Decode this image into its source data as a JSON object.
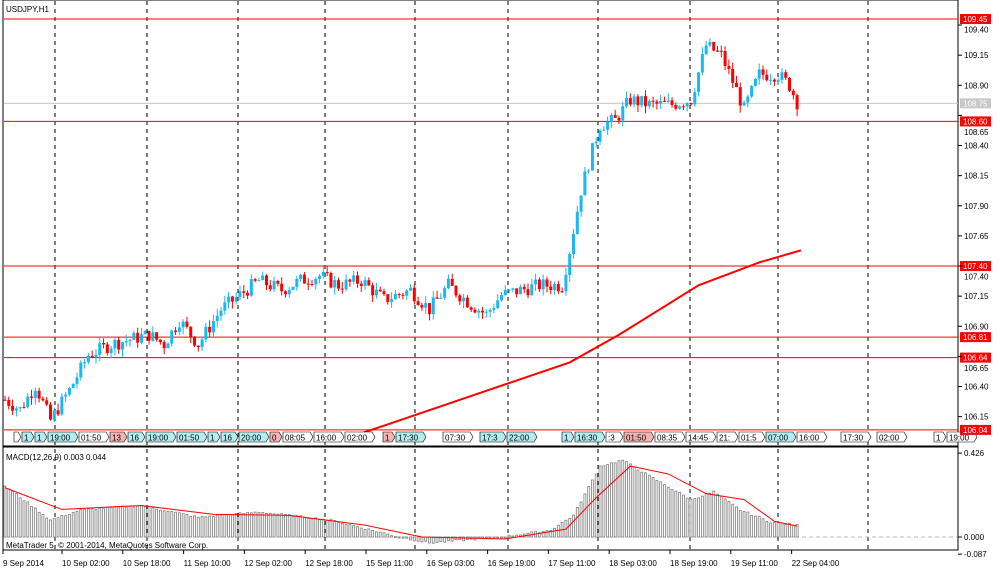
{
  "window": {
    "symbol_title": "USDJPY,H1"
  },
  "indicator": {
    "label": "MACD(12,26,9) 0.003 0.044"
  },
  "copyright": "MetaTrader 5, © 2001-2014, MetaQuotes Software Corp.",
  "colors": {
    "bull": "#1ab8f0",
    "bear": "#ff0000",
    "level_line": "#ff0000",
    "ma_line": "#ff0000",
    "bid_line": "#c8c8c8",
    "macd_hist": "#808080",
    "macd_signal": "#ff0000"
  },
  "price_axis": {
    "ticks": [
      "109.40",
      "109.15",
      "108.90",
      "108.65",
      "108.40",
      "108.15",
      "107.90",
      "107.65",
      "107.40",
      "107.15",
      "106.90",
      "106.65",
      "106.40",
      "106.15"
    ],
    "levels": [
      "109.45",
      "108.60",
      "107.40",
      "106.81",
      "106.64",
      "106.04"
    ],
    "bid": "108.75"
  },
  "macd_axis": {
    "ticks": [
      "0.426",
      "0.000",
      "-0.087"
    ]
  },
  "time_axis": {
    "labels": [
      "9 Sep 2014",
      "10 Sep 02:00",
      "10 Sep 18:00",
      "11 Sep 10:00",
      "12 Sep 02:00",
      "12 Sep 18:00",
      "15 Sep 11:00",
      "16 Sep 03:00",
      "16 Sep 19:00",
      "17 Sep 11:00",
      "18 Sep 03:00",
      "18 Sep 19:00",
      "19 Sep 11:00",
      "22 Sep 04:00"
    ]
  },
  "event_tags": [
    {
      "text": "",
      "kind": "plain"
    },
    {
      "text": "1",
      "kind": "cyan"
    },
    {
      "text": "1",
      "kind": "cyan"
    },
    {
      "text": "19:00",
      "kind": "cyan"
    },
    {
      "text": "01:50",
      "kind": "plain"
    },
    {
      "text": "13",
      "kind": "pink"
    },
    {
      "text": "16",
      "kind": "cyan"
    },
    {
      "text": "19:00",
      "kind": "cyan"
    },
    {
      "text": "01:50",
      "kind": "cyan"
    },
    {
      "text": "1",
      "kind": "cyan"
    },
    {
      "text": "16",
      "kind": "cyan"
    },
    {
      "text": "20:00",
      "kind": "cyan"
    },
    {
      "text": "0",
      "kind": "pink"
    },
    {
      "text": "08:05",
      "kind": "plain"
    },
    {
      "text": "16:00",
      "kind": "plain"
    },
    {
      "text": "02:00",
      "kind": "plain"
    },
    {
      "text": "1",
      "kind": "pink"
    },
    {
      "text": "17:30",
      "kind": "cyan"
    },
    {
      "text": "07:30",
      "kind": "plain"
    },
    {
      "text": "17:3",
      "kind": "cyan"
    },
    {
      "text": "22:00",
      "kind": "cyan"
    },
    {
      "text": "1",
      "kind": "cyan"
    },
    {
      "text": "16:30",
      "kind": "cyan"
    },
    {
      "text": ":3",
      "kind": "plain"
    },
    {
      "text": "01:50",
      "kind": "pink"
    },
    {
      "text": "08:35",
      "kind": "plain"
    },
    {
      "text": "14:45",
      "kind": "plain"
    },
    {
      "text": "21:",
      "kind": "plain"
    },
    {
      "text": "01:5",
      "kind": "plain"
    },
    {
      "text": "07:00",
      "kind": "cyan"
    },
    {
      "text": "16:00",
      "kind": "plain"
    },
    {
      "text": "17:30",
      "kind": "plain"
    },
    {
      "text": "02:00",
      "kind": "plain"
    },
    {
      "text": "1",
      "kind": "plain"
    },
    {
      "text": "19:00",
      "kind": "plain"
    }
  ],
  "chart_data": [
    {
      "type": "candlestick",
      "title": "USDJPY,H1",
      "ylim": [
        106.04,
        109.45
      ],
      "grid": "vertical dashed",
      "price_path": [
        [
          0,
          106.29
        ],
        [
          4,
          106.21
        ],
        [
          8,
          106.41
        ],
        [
          12,
          106.12
        ],
        [
          17,
          106.37
        ],
        [
          22,
          106.66
        ],
        [
          28,
          106.75
        ],
        [
          33,
          106.79
        ],
        [
          38,
          106.83
        ],
        [
          42,
          106.75
        ],
        [
          46,
          106.95
        ],
        [
          51,
          106.75
        ],
        [
          57,
          107.04
        ],
        [
          62,
          107.16
        ],
        [
          67,
          107.28
        ],
        [
          73,
          107.2
        ],
        [
          78,
          107.28
        ],
        [
          83,
          107.32
        ],
        [
          88,
          107.24
        ],
        [
          94,
          107.28
        ],
        [
          100,
          107.12
        ],
        [
          107,
          107.2
        ],
        [
          112,
          107.04
        ],
        [
          117,
          107.24
        ],
        [
          123,
          107.08
        ],
        [
          127,
          107.0
        ],
        [
          131,
          107.16
        ],
        [
          136,
          107.2
        ],
        [
          141,
          107.24
        ],
        [
          147,
          107.24
        ],
        [
          149,
          107.53
        ],
        [
          152,
          108.03
        ],
        [
          155,
          108.36
        ],
        [
          157,
          108.57
        ],
        [
          161,
          108.61
        ],
        [
          165,
          108.78
        ],
        [
          170,
          108.74
        ],
        [
          176,
          108.74
        ],
        [
          181,
          108.78
        ],
        [
          185,
          109.23
        ],
        [
          189,
          109.15
        ],
        [
          193,
          108.86
        ],
        [
          195,
          108.7
        ],
        [
          199,
          108.99
        ],
        [
          204,
          108.99
        ],
        [
          207,
          108.9
        ],
        [
          209,
          108.76
        ]
      ],
      "moving_average": [
        [
          92,
          105.99
        ],
        [
          149,
          106.6
        ],
        [
          162,
          106.83
        ],
        [
          183,
          107.24
        ],
        [
          199,
          107.43
        ],
        [
          210,
          107.53
        ]
      ],
      "horizontal_levels": [
        109.45,
        108.6,
        107.4,
        106.81,
        106.64,
        106.04
      ],
      "bid": 108.75
    },
    {
      "type": "bar",
      "title": "MACD(12,26,9)",
      "ylim": [
        -0.087,
        0.426
      ],
      "histogram_path": [
        [
          0,
          0.26
        ],
        [
          12,
          0.086
        ],
        [
          20,
          0.137
        ],
        [
          36,
          0.16
        ],
        [
          51,
          0.1
        ],
        [
          67,
          0.127
        ],
        [
          86,
          0.086
        ],
        [
          104,
          0.0
        ],
        [
          112,
          -0.03
        ],
        [
          131,
          0.0
        ],
        [
          144,
          0.035
        ],
        [
          150,
          0.11
        ],
        [
          157,
          0.36
        ],
        [
          163,
          0.39
        ],
        [
          170,
          0.31
        ],
        [
          181,
          0.19
        ],
        [
          187,
          0.23
        ],
        [
          194,
          0.137
        ],
        [
          202,
          0.076
        ],
        [
          209,
          0.06
        ]
      ],
      "signal_path": [
        [
          0,
          0.25
        ],
        [
          15,
          0.14
        ],
        [
          36,
          0.16
        ],
        [
          55,
          0.115
        ],
        [
          75,
          0.11
        ],
        [
          95,
          0.06
        ],
        [
          110,
          0.0
        ],
        [
          132,
          -0.01
        ],
        [
          148,
          0.04
        ],
        [
          156,
          0.2
        ],
        [
          165,
          0.36
        ],
        [
          175,
          0.32
        ],
        [
          185,
          0.22
        ],
        [
          195,
          0.19
        ],
        [
          203,
          0.08
        ],
        [
          209,
          0.055
        ]
      ],
      "main_value": 0.003,
      "signal_value": 0.044
    }
  ]
}
